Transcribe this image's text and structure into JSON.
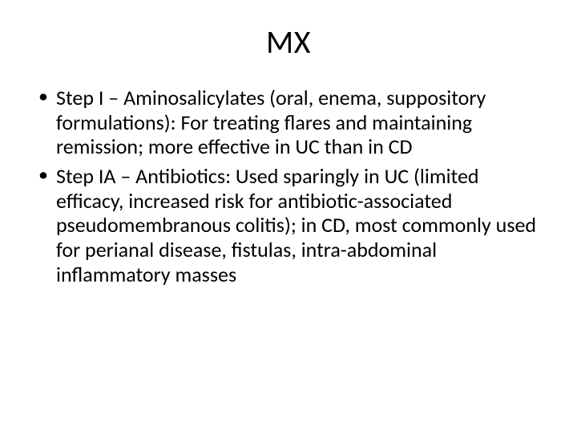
{
  "slide": {
    "title": "MX",
    "bullets": [
      "Step I – Aminosalicylates (oral, enema, suppository formulations): For treating flares and maintaining remission; more effective in UC than in CD",
      "Step IA – Antibiotics: Used sparingly in UC (limited efficacy, increased risk for antibiotic-associated pseudomembranous colitis); in CD, most commonly used for perianal disease, fistulas, intra-abdominal inflammatory masses"
    ],
    "background_color": "#ffffff",
    "text_color": "#000000",
    "title_fontsize": 40,
    "body_fontsize": 26,
    "font_family": "Calibri"
  }
}
